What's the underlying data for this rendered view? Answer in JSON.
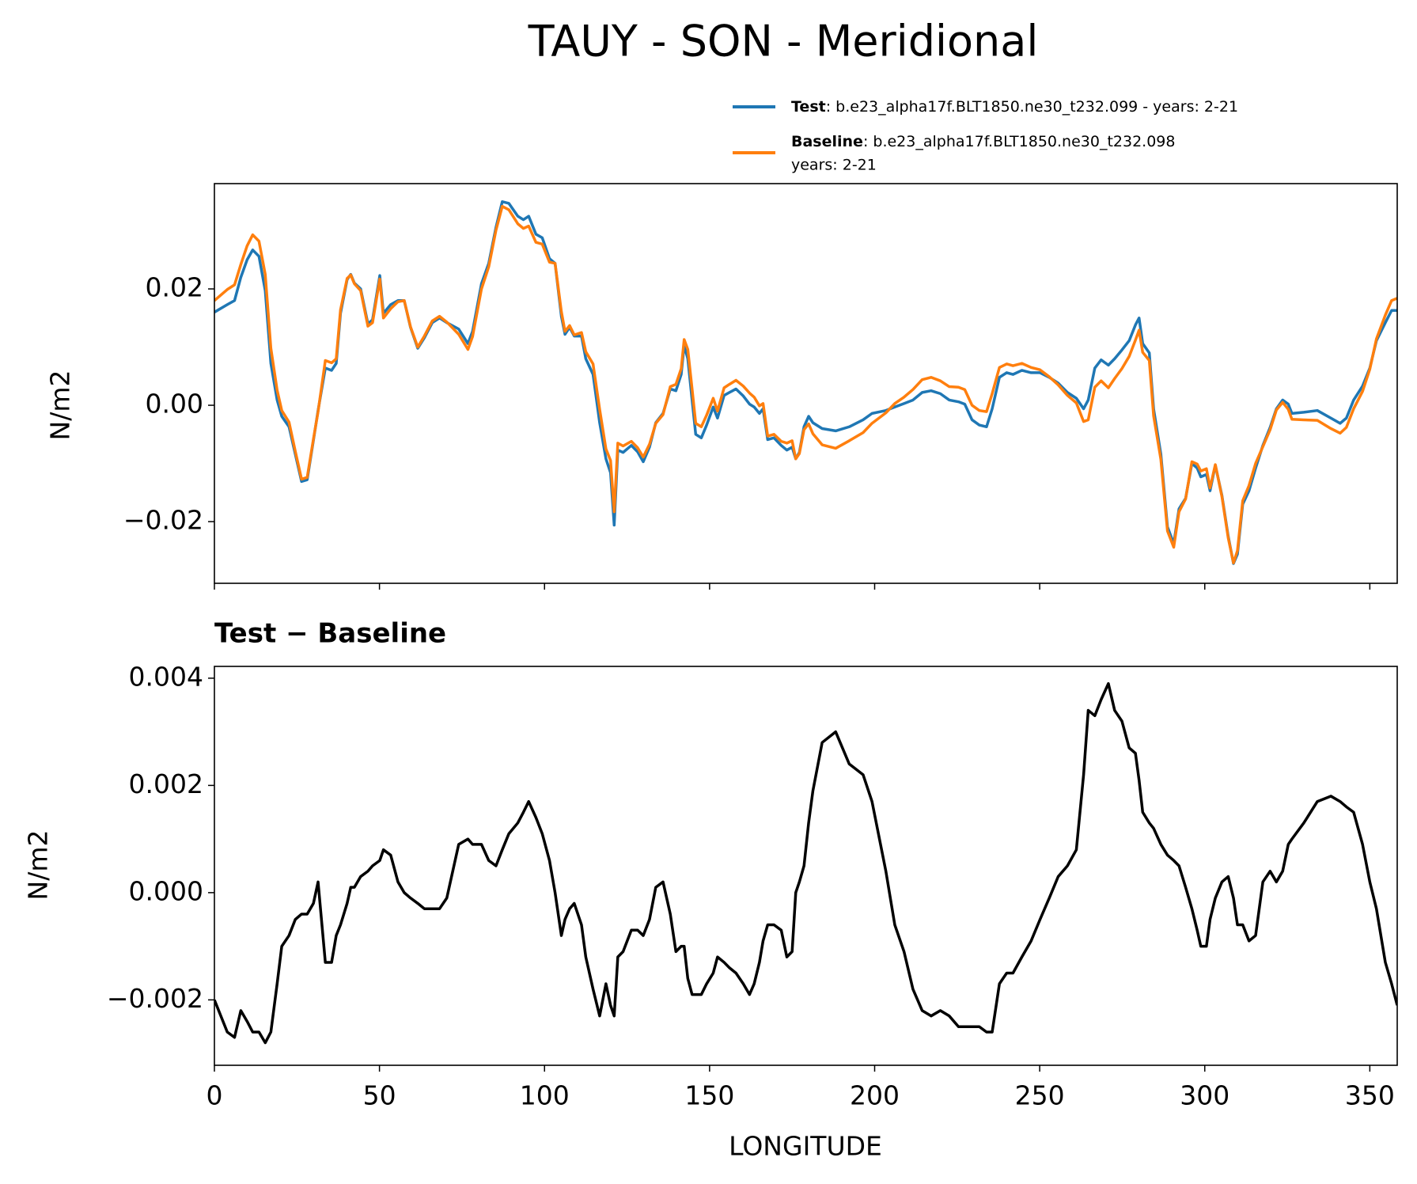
{
  "chart_data": [
    {
      "type": "line",
      "title": "TAUY - SON - Meridional",
      "ylabel": "N/m2",
      "x": [
        0,
        3.9,
        6.1,
        8.0,
        9.9,
        11.6,
        13.5,
        15.4,
        17.1,
        19.0,
        20.4,
        22.6,
        24.5,
        26.4,
        28.1,
        30.0,
        31.4,
        33.6,
        35.5,
        36.9,
        38.2,
        40.2,
        41.3,
        42.4,
        44.3,
        46.5,
        47.9,
        50.1,
        51.2,
        53.4,
        55.6,
        57.5,
        59.4,
        61.6,
        63.6,
        66.0,
        68.2,
        70.4,
        74.0,
        76.8,
        78.2,
        80.9,
        83.1,
        85.3,
        87.2,
        89.2,
        91.9,
        93.6,
        95.2,
        97.4,
        99.3,
        101.5,
        103.2,
        105.1,
        106.2,
        107.6,
        109.0,
        111.2,
        112.5,
        114.7,
        116.7,
        118.6,
        120.0,
        121.1,
        122.2,
        123.8,
        126.3,
        128.2,
        129.9,
        131.8,
        133.7,
        135.9,
        138.1,
        139.8,
        141.4,
        142.3,
        143.4,
        144.7,
        145.8,
        147.5,
        149.1,
        151.1,
        152.4,
        154.4,
        156.0,
        158.0,
        160.2,
        162.1,
        163.5,
        165.1,
        166.2,
        167.6,
        169.5,
        171.7,
        173.4,
        175.0,
        176.1,
        177.2,
        178.6,
        180.0,
        181.3,
        184.1,
        188.2,
        192.3,
        196.5,
        199.2,
        203.4,
        206.1,
        208.9,
        211.6,
        214.4,
        217.1,
        219.9,
        222.6,
        225.4,
        227.3,
        229.5,
        231.7,
        233.9,
        235.6,
        237.8,
        240.0,
        241.9,
        244.6,
        247.4,
        250.1,
        252.9,
        255.6,
        258.4,
        261.1,
        263.3,
        264.7,
        266.7,
        268.6,
        270.8,
        272.7,
        274.9,
        277.1,
        279.0,
        280.1,
        281.2,
        283.2,
        284.5,
        286.7,
        288.7,
        290.6,
        292.2,
        294.2,
        296.1,
        297.7,
        298.8,
        300.5,
        301.6,
        303.2,
        305.2,
        307.1,
        308.7,
        309.9,
        311.5,
        313.4,
        315.4,
        317.6,
        319.8,
        321.7,
        323.6,
        325.3,
        326.4,
        330.0,
        334.1,
        338.2,
        341.0,
        342.9,
        345.1,
        347.8,
        350.0,
        352.0,
        354.7,
        356.6,
        358.3
      ],
      "series": [
        {
          "name": "Test",
          "description": [
            ": b.e23_alpha17f.BLT1850.ne30_t232.099 - years: 2-21"
          ],
          "color": "#1f77b4",
          "values": [
            0.016,
            0.0173,
            0.018,
            0.022,
            0.025,
            0.0267,
            0.0256,
            0.0197,
            0.0072,
            0.0009,
            -0.0019,
            -0.0037,
            -0.0084,
            -0.0131,
            -0.0128,
            -0.006,
            -0.0009,
            0.0064,
            0.006,
            0.0072,
            0.0158,
            0.0216,
            0.0225,
            0.021,
            0.02,
            0.014,
            0.0147,
            0.0223,
            0.0158,
            0.0173,
            0.018,
            0.018,
            0.0134,
            0.0098,
            0.0116,
            0.0142,
            0.015,
            0.0142,
            0.0131,
            0.0106,
            0.0127,
            0.0209,
            0.0244,
            0.0306,
            0.035,
            0.0347,
            0.0325,
            0.0319,
            0.0325,
            0.0294,
            0.0288,
            0.0252,
            0.0244,
            0.0153,
            0.0122,
            0.0134,
            0.0119,
            0.0119,
            0.008,
            0.0053,
            -0.003,
            -0.0092,
            -0.0116,
            -0.0206,
            -0.0077,
            -0.0081,
            -0.0069,
            -0.008,
            -0.0097,
            -0.0072,
            -0.003,
            -0.0014,
            0.0028,
            0.0025,
            0.0053,
            0.0103,
            0.008,
            0.0009,
            -0.005,
            -0.0056,
            -0.0034,
            -0.0003,
            -0.0022,
            0.0017,
            0.0022,
            0.0028,
            0.0016,
            0.0002,
            -0.0003,
            -0.0014,
            -0.0006,
            -0.0059,
            -0.0056,
            -0.0069,
            -0.0077,
            -0.0072,
            -0.0092,
            -0.0081,
            -0.0037,
            -0.0019,
            -0.003,
            -0.004,
            -0.0044,
            -0.0037,
            -0.0025,
            -0.0014,
            -0.0009,
            -0.0003,
            0.0003,
            0.0009,
            0.0022,
            0.0025,
            0.002,
            0.0009,
            0.0006,
            0.0002,
            -0.0025,
            -0.0034,
            -0.0037,
            -0.0006,
            0.0048,
            0.0056,
            0.0053,
            0.006,
            0.0056,
            0.0056,
            0.0048,
            0.0038,
            0.0022,
            0.0012,
            -0.0006,
            0.0009,
            0.0064,
            0.0078,
            0.0069,
            0.008,
            0.0095,
            0.0111,
            0.0138,
            0.015,
            0.0106,
            0.009,
            -0.0006,
            -0.0084,
            -0.0209,
            -0.0238,
            -0.0178,
            -0.016,
            -0.01,
            -0.0108,
            -0.0123,
            -0.0119,
            -0.0147,
            -0.0103,
            -0.0155,
            -0.0225,
            -0.0272,
            -0.0256,
            -0.017,
            -0.0147,
            -0.0108,
            -0.0069,
            -0.0038,
            -0.0006,
            0.0009,
            0.0002,
            -0.0014,
            -0.0012,
            -0.0009,
            -0.0022,
            -0.0031,
            -0.0022,
            0.0009,
            0.0033,
            0.0064,
            0.0111,
            0.0142,
            0.0163,
            0.0163
          ]
        },
        {
          "name": "Baseline",
          "description": [
            ": b.e23_alpha17f.BLT1850.ne30_t232.098",
            "years: 2-21"
          ],
          "color": "#ff7f0e",
          "values": [
            0.018,
            0.0199,
            0.0207,
            0.0242,
            0.0274,
            0.0293,
            0.0282,
            0.0225,
            0.0098,
            0.0026,
            -0.0009,
            -0.0029,
            -0.0079,
            -0.0127,
            -0.0124,
            -0.0058,
            -0.0011,
            0.0077,
            0.0073,
            0.008,
            0.0164,
            0.0218,
            0.0224,
            0.0209,
            0.0197,
            0.0136,
            0.0142,
            0.0217,
            0.015,
            0.0166,
            0.0178,
            0.018,
            0.0135,
            0.01,
            0.0119,
            0.0145,
            0.0153,
            0.0143,
            0.0122,
            0.0096,
            0.0118,
            0.02,
            0.0238,
            0.0301,
            0.0342,
            0.0336,
            0.0312,
            0.0304,
            0.0308,
            0.028,
            0.0277,
            0.0246,
            0.0244,
            0.0161,
            0.0127,
            0.0137,
            0.0121,
            0.0125,
            0.0092,
            0.0071,
            -0.0007,
            -0.0075,
            -0.0095,
            -0.0183,
            -0.0065,
            -0.007,
            -0.0062,
            -0.0073,
            -0.0089,
            -0.0067,
            -0.0031,
            -0.0016,
            0.0032,
            0.0036,
            0.0063,
            0.0113,
            0.0096,
            0.0028,
            -0.0031,
            -0.0037,
            -0.0017,
            0.0012,
            -0.001,
            0.003,
            0.0036,
            0.0043,
            0.0033,
            0.0021,
            0.0014,
            -0.0001,
            0.0003,
            -0.0053,
            -0.005,
            -0.0062,
            -0.0065,
            -0.0061,
            -0.0092,
            -0.0083,
            -0.0042,
            -0.0032,
            -0.0049,
            -0.0068,
            -0.0074,
            -0.0061,
            -0.0047,
            -0.0031,
            -0.0013,
            0.0003,
            0.0014,
            0.0027,
            0.0044,
            0.0048,
            0.0042,
            0.0032,
            0.0031,
            0.0027,
            0,
            -0.0009,
            -0.0011,
            0.002,
            0.0065,
            0.0071,
            0.0068,
            0.0072,
            0.0065,
            0.0061,
            0.0049,
            0.0035,
            0.0017,
            0.0004,
            -0.0028,
            -0.0025,
            0.0031,
            0.0042,
            0.003,
            0.0046,
            0.0063,
            0.0084,
            0.0112,
            0.0129,
            0.0091,
            0.0077,
            -0.0018,
            -0.0093,
            -0.0216,
            -0.0244,
            -0.0183,
            -0.0161,
            -0.0097,
            -0.0101,
            -0.0113,
            -0.0109,
            -0.0142,
            -0.0102,
            -0.0157,
            -0.0228,
            -0.0271,
            -0.025,
            -0.0164,
            -0.0138,
            -0.01,
            -0.0071,
            -0.0042,
            -0.0008,
            0.0005,
            -0.0007,
            -0.0024,
            -0.0025,
            -0.0026,
            -0.004,
            -0.0048,
            -0.0038,
            -0.0006,
            0.0024,
            0.0062,
            0.0114,
            0.0155,
            0.018,
            0.0184
          ]
        }
      ],
      "xlim": [
        0,
        358.3
      ],
      "xticks": [
        0,
        50,
        100,
        150,
        200,
        250,
        300,
        350
      ],
      "xtick_labels": false,
      "ylim": [
        -0.0306,
        0.0381
      ],
      "yticks": [
        {
          "value": -0.02,
          "label": "−0.02"
        },
        {
          "value": 0,
          "label": "0.00"
        },
        {
          "value": 0.02,
          "label": "0.02"
        }
      ],
      "legend": "upper right",
      "grid": false
    },
    {
      "type": "line",
      "title": "Test − Baseline",
      "ylabel": "N/m2",
      "xlabel": "LONGITUDE",
      "x": [
        0,
        3.9,
        6.1,
        8.0,
        9.9,
        11.6,
        13.5,
        15.4,
        17.1,
        19.0,
        20.4,
        22.6,
        24.5,
        26.4,
        28.1,
        30.0,
        31.4,
        33.6,
        35.5,
        36.9,
        38.2,
        40.2,
        41.3,
        42.4,
        44.3,
        46.5,
        47.9,
        50.1,
        51.2,
        53.4,
        55.6,
        57.5,
        59.4,
        61.6,
        63.6,
        66.0,
        68.2,
        70.4,
        74.0,
        76.8,
        78.2,
        80.9,
        83.1,
        85.3,
        87.2,
        89.2,
        91.9,
        93.6,
        95.2,
        97.4,
        99.3,
        101.5,
        103.2,
        105.1,
        106.2,
        107.6,
        109.0,
        111.2,
        112.5,
        114.7,
        116.7,
        118.6,
        120.0,
        121.1,
        122.2,
        123.8,
        126.3,
        128.2,
        129.9,
        131.8,
        133.7,
        135.9,
        138.1,
        139.8,
        141.4,
        142.3,
        143.4,
        144.7,
        145.8,
        147.5,
        149.1,
        151.1,
        152.4,
        154.4,
        156.0,
        158.0,
        160.2,
        162.1,
        163.5,
        165.1,
        166.2,
        167.6,
        169.5,
        171.7,
        173.4,
        175.0,
        176.1,
        177.2,
        178.6,
        180.0,
        181.3,
        184.1,
        188.2,
        192.3,
        196.5,
        199.2,
        203.4,
        206.1,
        208.9,
        211.6,
        214.4,
        217.1,
        219.9,
        222.6,
        225.4,
        227.3,
        229.5,
        231.7,
        233.9,
        235.6,
        237.8,
        240.0,
        241.9,
        244.6,
        247.4,
        250.1,
        252.9,
        255.6,
        258.4,
        261.1,
        263.3,
        264.7,
        266.7,
        268.6,
        270.8,
        272.7,
        274.9,
        277.1,
        279.0,
        280.1,
        281.2,
        283.2,
        284.5,
        286.7,
        288.7,
        290.6,
        292.2,
        294.2,
        296.1,
        297.7,
        298.8,
        300.5,
        301.6,
        303.2,
        305.2,
        307.1,
        308.7,
        309.9,
        311.5,
        313.4,
        315.4,
        317.6,
        319.8,
        321.7,
        323.6,
        325.3,
        326.4,
        330.0,
        334.1,
        338.2,
        341.0,
        342.9,
        345.1,
        347.8,
        350.0,
        352.0,
        354.7,
        356.6,
        358.3
      ],
      "series": [
        {
          "color": "#000000",
          "values": [
            -0.002,
            -0.0026,
            -0.0027,
            -0.0022,
            -0.0024,
            -0.0026,
            -0.0026,
            -0.0028,
            -0.0026,
            -0.0017,
            -0.001,
            -0.0008,
            -0.0005,
            -0.0004,
            -0.0004,
            -0.0002,
            0.0002,
            -0.0013,
            -0.0013,
            -0.0008,
            -0.0006,
            -0.0002,
            0.0001,
            0.0001,
            0.0003,
            0.0004,
            0.0005,
            0.0006,
            0.0008,
            0.0007,
            0.0002,
            0,
            -0.0001,
            -0.0002,
            -0.0003,
            -0.0003,
            -0.0003,
            -0.0001,
            0.0009,
            0.001,
            0.0009,
            0.0009,
            0.0006,
            0.0005,
            0.0008,
            0.0011,
            0.0013,
            0.0015,
            0.0017,
            0.0014,
            0.0011,
            0.0006,
            0,
            -0.0008,
            -0.0005,
            -0.0003,
            -0.0002,
            -0.0006,
            -0.0012,
            -0.0018,
            -0.0023,
            -0.0017,
            -0.0021,
            -0.0023,
            -0.0012,
            -0.0011,
            -0.0007,
            -0.0007,
            -0.0008,
            -0.0005,
            0.0001,
            0.0002,
            -0.0004,
            -0.0011,
            -0.001,
            -0.001,
            -0.0016,
            -0.0019,
            -0.0019,
            -0.0019,
            -0.0017,
            -0.0015,
            -0.0012,
            -0.0013,
            -0.0014,
            -0.0015,
            -0.0017,
            -0.0019,
            -0.0017,
            -0.0013,
            -0.0009,
            -0.0006,
            -0.0006,
            -0.0007,
            -0.0012,
            -0.0011,
            0,
            0.0002,
            0.0005,
            0.0013,
            0.0019,
            0.0028,
            0.003,
            0.0024,
            0.0022,
            0.0017,
            0.0004,
            -0.0006,
            -0.0011,
            -0.0018,
            -0.0022,
            -0.0023,
            -0.0022,
            -0.0023,
            -0.0025,
            -0.0025,
            -0.0025,
            -0.0025,
            -0.0026,
            -0.0026,
            -0.0017,
            -0.0015,
            -0.0015,
            -0.0012,
            -0.0009,
            -0.0005,
            -0.0001,
            0.0003,
            0.0005,
            0.0008,
            0.0022,
            0.0034,
            0.0033,
            0.0036,
            0.0039,
            0.0034,
            0.0032,
            0.0027,
            0.0026,
            0.0021,
            0.0015,
            0.0013,
            0.0012,
            0.0009,
            0.0007,
            0.0006,
            0.0005,
            0.0001,
            -0.0003,
            -0.0007,
            -0.001,
            -0.001,
            -0.0005,
            -0.0001,
            0.0002,
            0.0003,
            -0.0001,
            -0.0006,
            -0.0006,
            -0.0009,
            -0.0008,
            0.0002,
            0.0004,
            0.0002,
            0.0004,
            0.0009,
            0.001,
            0.0013,
            0.0017,
            0.0018,
            0.0017,
            0.0016,
            0.0015,
            0.0009,
            0.0002,
            -0.0003,
            -0.0013,
            -0.0017,
            -0.0021
          ]
        }
      ],
      "xlim": [
        0,
        358.3
      ],
      "xticks": [
        0,
        50,
        100,
        150,
        200,
        250,
        300,
        350
      ],
      "xtick_labels": true,
      "ylim": [
        -0.00322,
        0.00422
      ],
      "yticks": [
        {
          "value": -0.002,
          "label": "−0.002"
        },
        {
          "value": 0,
          "label": "0.000"
        },
        {
          "value": 0.002,
          "label": "0.002"
        },
        {
          "value": 0.004,
          "label": "0.004"
        }
      ],
      "grid": false
    }
  ]
}
